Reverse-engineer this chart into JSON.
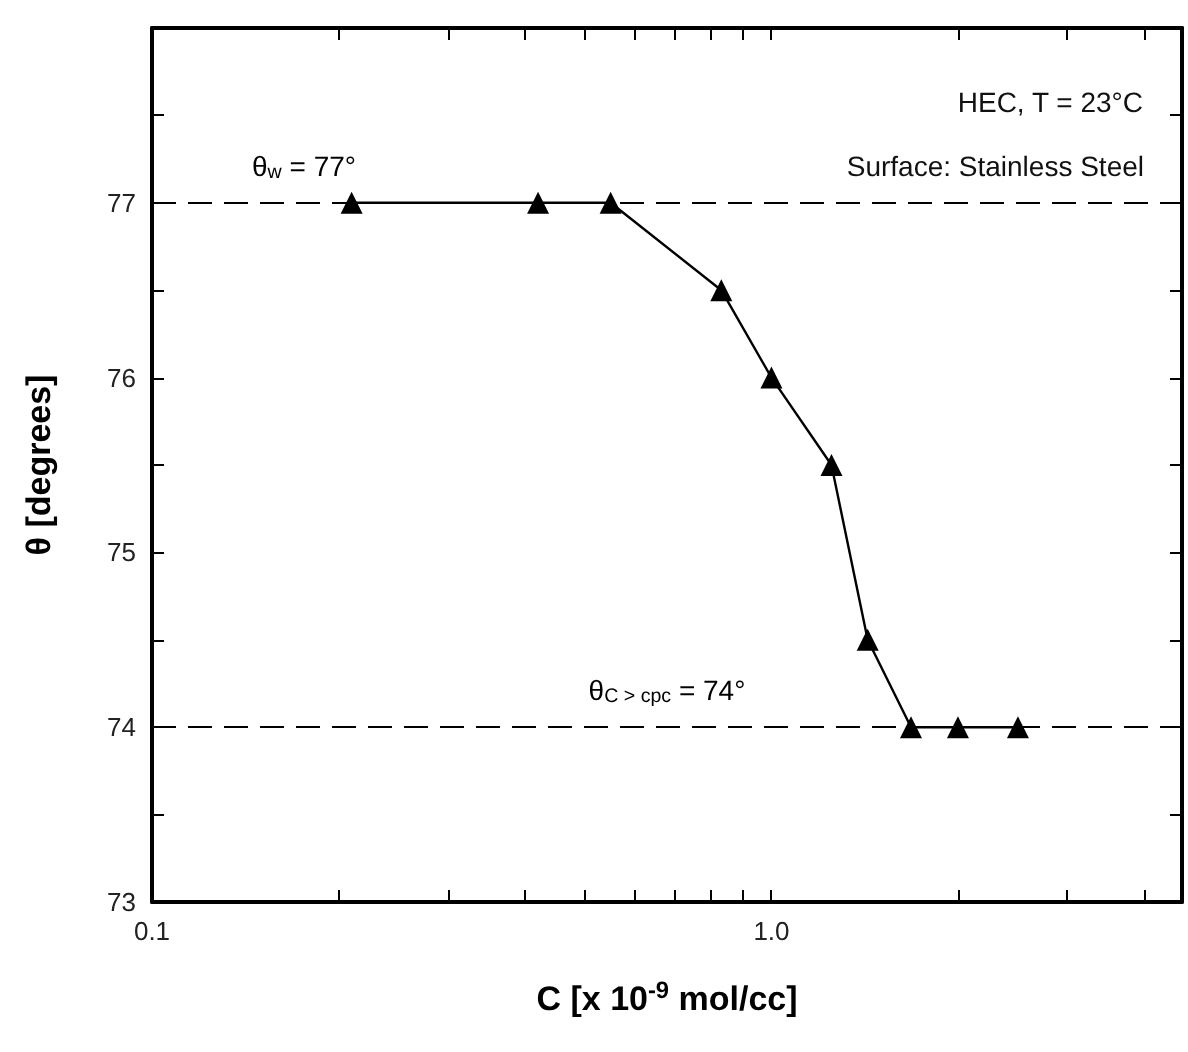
{
  "chart_data": {
    "type": "line",
    "xlabel": "C [x 10$^{-9}$ mol/cc]",
    "ylabel": "θ [degrees]",
    "log": "x",
    "x": [
      0.21,
      0.42,
      0.55,
      0.83,
      1.0,
      1.25,
      1.43,
      1.68,
      2.0,
      2.5
    ],
    "series": [
      {
        "color": "#000000",
        "values": [
          77,
          77,
          77,
          76.5,
          76,
          75.5,
          74.5,
          74,
          74,
          74
        ]
      }
    ],
    "xlim": [
      0.1,
      4.6
    ],
    "xticks": [
      0.1,
      {
        "value": 0.2,
        "label": null
      },
      {
        "value": 0.3,
        "label": null
      },
      {
        "value": 0.4,
        "label": null
      },
      {
        "value": 0.5,
        "label": null
      },
      {
        "value": 0.6,
        "label": null
      },
      {
        "value": 0.7,
        "label": null
      },
      {
        "value": 0.8,
        "label": null
      },
      {
        "value": 0.9,
        "label": null
      },
      {
        "value": 1,
        "label": "1.0"
      },
      {
        "value": 2,
        "label": null
      },
      {
        "value": 3,
        "label": null
      },
      {
        "value": 4,
        "label": null
      }
    ],
    "ylim": [
      73,
      78
    ],
    "yticks": [
      73,
      {
        "value": 73.5,
        "label": null
      },
      74,
      {
        "value": 74.5,
        "label": null
      },
      75,
      {
        "value": 75.5,
        "label": null
      },
      76,
      {
        "value": 76.5,
        "label": null
      },
      77,
      {
        "value": 77.5,
        "label": null
      },
      {
        "value": 78,
        "label": null
      }
    ],
    "ref_lines": [
      {
        "axis": "y",
        "value": 77,
        "label": "θ$_{w}$ = 77°",
        "line_style": "dashed"
      },
      {
        "axis": "y",
        "value": 74,
        "label": "θ$_{C > cpc}$ = 74°",
        "line_style": "dashed"
      }
    ],
    "annotations": [
      "HEC, T = 23°C",
      "Surface: Stainless Steel"
    ],
    "marker": "triangle",
    "line_style": "solid",
    "grid": false
  }
}
